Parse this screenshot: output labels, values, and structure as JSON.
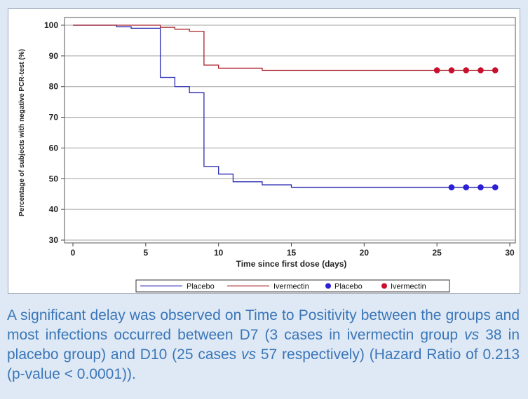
{
  "chart_data": {
    "type": "line",
    "step": true,
    "title": "",
    "xlabel": "Time since first dose (days)",
    "ylabel": "Percentage of subjects with negative PCR-test (%)",
    "xlim": [
      0,
      30
    ],
    "ylim": [
      30,
      100
    ],
    "xticks": [
      0,
      5,
      10,
      15,
      20,
      25,
      30
    ],
    "yticks": [
      30,
      40,
      50,
      60,
      70,
      80,
      90,
      100
    ],
    "grid": "horizontal",
    "legend_position": "bottom",
    "colors": {
      "placebo": "#2b2bb0",
      "ivermectin": "#a8202a",
      "placebo_marker": "#2a1fd6",
      "ivermectin_marker": "#c8102e"
    },
    "series": [
      {
        "name": "Placebo",
        "kind": "line",
        "color": "#2b2bb0",
        "x": [
          0,
          3,
          4,
          6,
          7,
          8,
          9,
          10,
          11,
          13,
          15,
          29
        ],
        "y": [
          100,
          99.5,
          99,
          83,
          80,
          78,
          54,
          51.5,
          49,
          48,
          47.2,
          47.2
        ]
      },
      {
        "name": "Ivermectin",
        "kind": "line",
        "color": "#a8202a",
        "x": [
          0,
          6,
          7,
          8,
          9,
          10,
          13,
          29
        ],
        "y": [
          100,
          99.3,
          98.7,
          98,
          87,
          86,
          85.3,
          85.3
        ]
      },
      {
        "name": "Placebo",
        "kind": "marker",
        "color": "#2a1fd6",
        "x": [
          26,
          27,
          28,
          29
        ],
        "y": [
          47.2,
          47.2,
          47.2,
          47.2
        ]
      },
      {
        "name": "Ivermectin",
        "kind": "marker",
        "color": "#c8102e",
        "x": [
          25,
          26,
          27,
          28,
          29
        ],
        "y": [
          85.3,
          85.3,
          85.3,
          85.3,
          85.3
        ]
      }
    ]
  },
  "caption": {
    "part1": "A significant delay was observed on Time to Positivity between the groups and most infections occurred between D7 (3 cases  in ivermectin group ",
    "vs1": "vs",
    "part2": " 38 in placebo group) and D10 (25 cases ",
    "vs2": "vs",
    "part3": " 57 respectively)  (Hazard Ratio of 0.213 (p-value < 0.0001))."
  }
}
